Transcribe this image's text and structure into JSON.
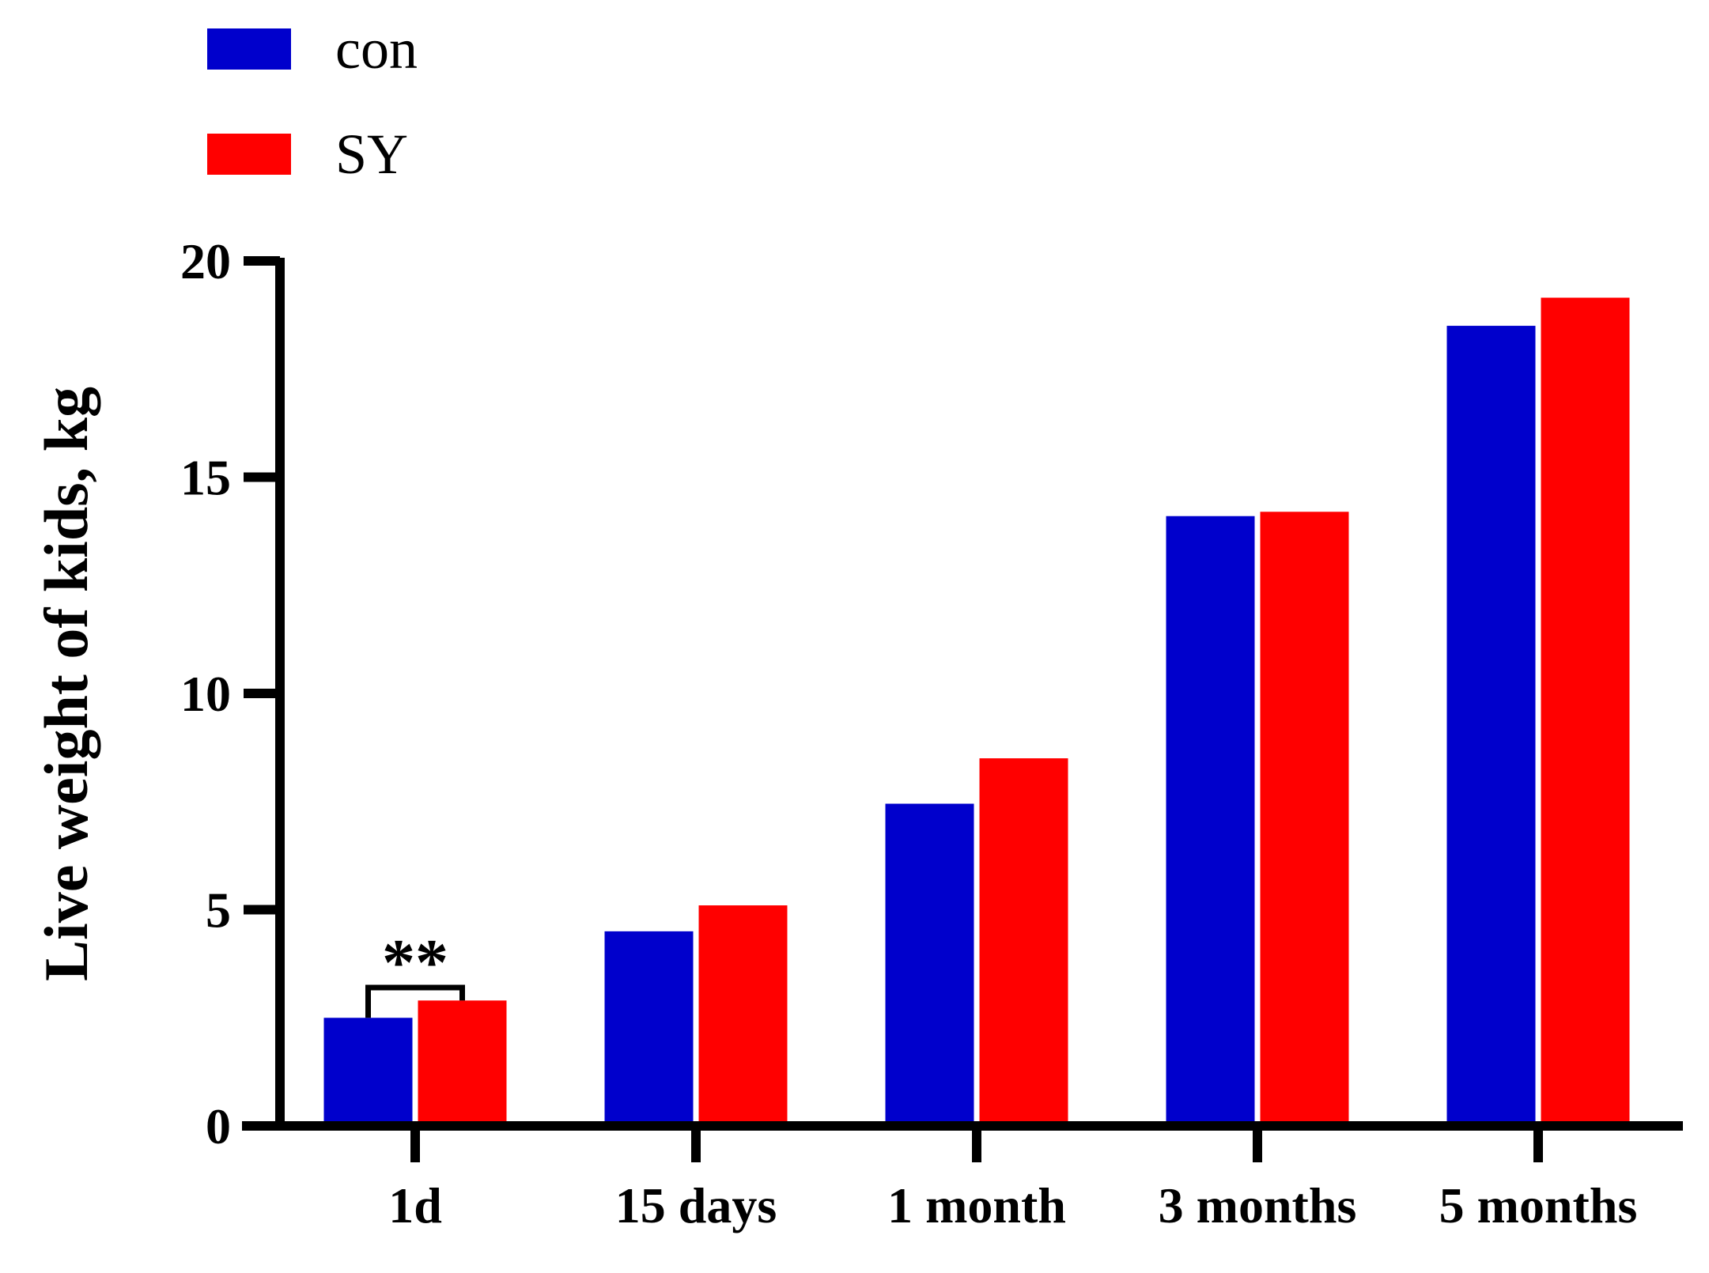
{
  "chart_data": {
    "type": "bar",
    "categories": [
      "1d",
      "15 days",
      "1 month",
      "3 months",
      "5 months"
    ],
    "series": [
      {
        "name": "con",
        "color": "#0000cc",
        "values": [
          2.5,
          4.5,
          7.45,
          14.1,
          18.5
        ]
      },
      {
        "name": "SY",
        "color": "#ff0000",
        "values": [
          2.9,
          5.1,
          8.5,
          14.2,
          19.15
        ]
      }
    ],
    "title": "",
    "xlabel": "",
    "ylabel": "Live weight of kids, kg",
    "ylim": [
      0,
      20
    ],
    "yticks": [
      "0",
      "5",
      "10",
      "15",
      "20"
    ],
    "ytick_values": [
      0,
      5,
      10,
      15,
      20
    ],
    "grid": false,
    "legend_position": "top-left",
    "annotations": [
      {
        "text": "**",
        "category": "1d",
        "type": "significance-bracket",
        "bracket_value": 3.2
      }
    ]
  }
}
